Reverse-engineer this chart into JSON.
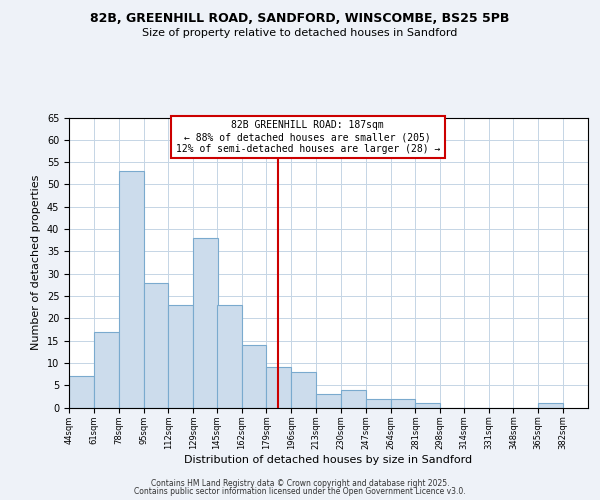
{
  "title1": "82B, GREENHILL ROAD, SANDFORD, WINSCOMBE, BS25 5PB",
  "title2": "Size of property relative to detached houses in Sandford",
  "xlabel": "Distribution of detached houses by size in Sandford",
  "ylabel": "Number of detached properties",
  "bin_labels": [
    "44sqm",
    "61sqm",
    "78sqm",
    "95sqm",
    "112sqm",
    "129sqm",
    "145sqm",
    "162sqm",
    "179sqm",
    "196sqm",
    "213sqm",
    "230sqm",
    "247sqm",
    "264sqm",
    "281sqm",
    "298sqm",
    "314sqm",
    "331sqm",
    "348sqm",
    "365sqm",
    "382sqm"
  ],
  "bar_values": [
    7,
    17,
    53,
    28,
    23,
    38,
    23,
    14,
    9,
    8,
    3,
    4,
    2,
    2,
    1,
    0,
    0,
    0,
    0,
    1
  ],
  "bar_color": "#ccdcec",
  "bar_edge_color": "#7aaace",
  "vline_x": 187,
  "bin_edges": [
    44,
    61,
    78,
    95,
    112,
    129,
    145,
    162,
    179,
    196,
    213,
    230,
    247,
    264,
    281,
    298,
    314,
    331,
    348,
    365,
    382
  ],
  "annotation_line1": "82B GREENHILL ROAD: 187sqm",
  "annotation_line2": "← 88% of detached houses are smaller (205)",
  "annotation_line3": "12% of semi-detached houses are larger (28) →",
  "annotation_box_color": "#cc0000",
  "ylim": [
    0,
    65
  ],
  "yticks": [
    0,
    5,
    10,
    15,
    20,
    25,
    30,
    35,
    40,
    45,
    50,
    55,
    60,
    65
  ],
  "footer1": "Contains HM Land Registry data © Crown copyright and database right 2025.",
  "footer2": "Contains public sector information licensed under the Open Government Licence v3.0.",
  "bg_color": "#eef2f8",
  "plot_bg_color": "#ffffff",
  "grid_color": "#c5d5e5"
}
